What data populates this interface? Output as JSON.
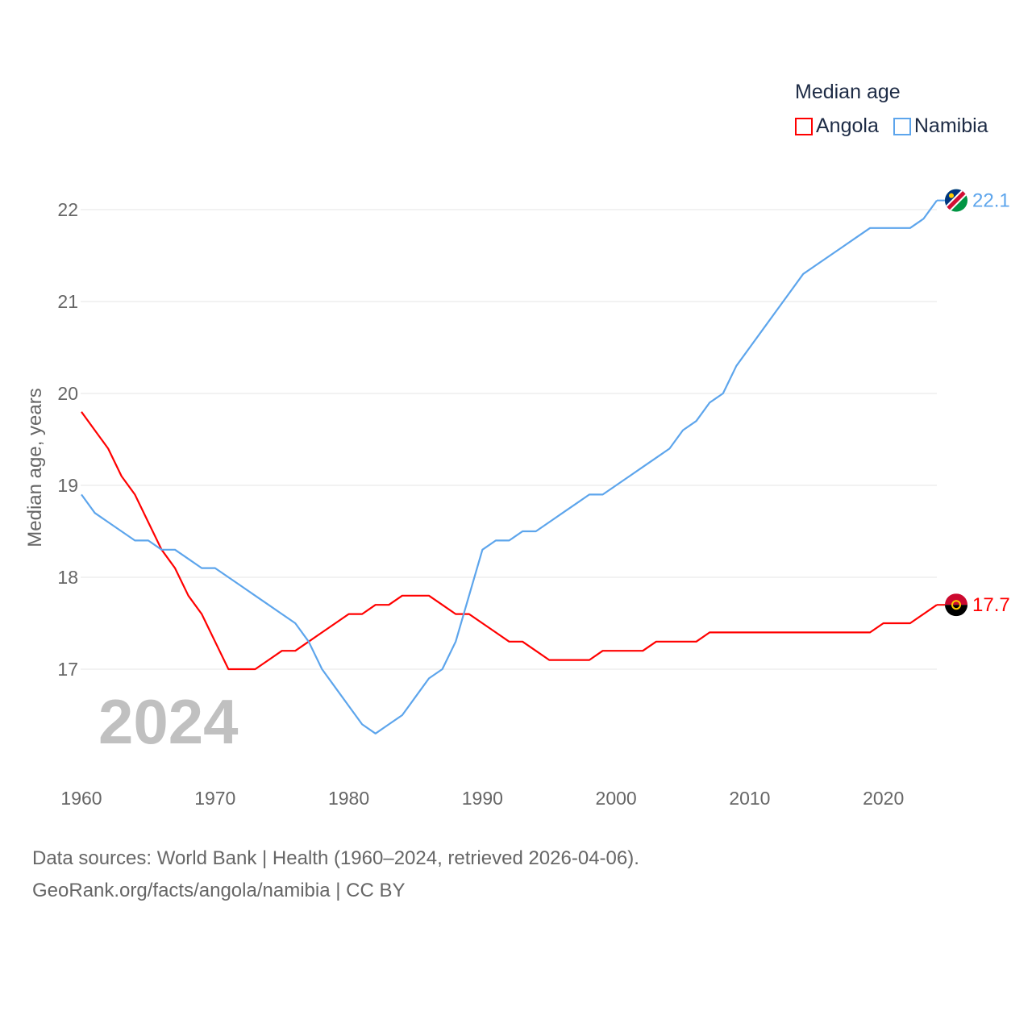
{
  "chart_data": {
    "type": "line",
    "title": "Median age",
    "ylabel": "Median age, years",
    "xlabel": "",
    "xlim": [
      1960,
      2024
    ],
    "ylim": [
      16,
      22.5
    ],
    "yticks": [
      17,
      18,
      19,
      20,
      21,
      22
    ],
    "xticks": [
      1960,
      1970,
      1980,
      1990,
      2000,
      2010,
      2020
    ],
    "grid": true,
    "legend_position": "top-right",
    "current_year_label": "2024",
    "x": [
      1960,
      1961,
      1962,
      1963,
      1964,
      1965,
      1966,
      1967,
      1968,
      1969,
      1970,
      1971,
      1972,
      1973,
      1974,
      1975,
      1976,
      1977,
      1978,
      1979,
      1980,
      1981,
      1982,
      1983,
      1984,
      1985,
      1986,
      1987,
      1988,
      1989,
      1990,
      1991,
      1992,
      1993,
      1994,
      1995,
      1996,
      1997,
      1998,
      1999,
      2000,
      2001,
      2002,
      2003,
      2004,
      2005,
      2006,
      2007,
      2008,
      2009,
      2010,
      2011,
      2012,
      2013,
      2014,
      2015,
      2016,
      2017,
      2018,
      2019,
      2020,
      2021,
      2022,
      2023,
      2024
    ],
    "series": [
      {
        "name": "Angola",
        "color": "#ff0000",
        "end_label": "17.7",
        "flag": "angola-flag",
        "values": [
          19.8,
          19.6,
          19.4,
          19.1,
          18.9,
          18.6,
          18.3,
          18.1,
          17.8,
          17.6,
          17.3,
          17.0,
          17.0,
          17.0,
          17.1,
          17.2,
          17.2,
          17.3,
          17.4,
          17.5,
          17.6,
          17.6,
          17.7,
          17.7,
          17.8,
          17.8,
          17.8,
          17.7,
          17.6,
          17.6,
          17.5,
          17.4,
          17.3,
          17.3,
          17.2,
          17.1,
          17.1,
          17.1,
          17.1,
          17.2,
          17.2,
          17.2,
          17.2,
          17.3,
          17.3,
          17.3,
          17.3,
          17.4,
          17.4,
          17.4,
          17.4,
          17.4,
          17.4,
          17.4,
          17.4,
          17.4,
          17.4,
          17.4,
          17.4,
          17.4,
          17.5,
          17.5,
          17.5,
          17.6,
          17.7
        ]
      },
      {
        "name": "Namibia",
        "color": "#5da5ec",
        "end_label": "22.1",
        "flag": "namibia-flag",
        "values": [
          18.9,
          18.7,
          18.6,
          18.5,
          18.4,
          18.4,
          18.3,
          18.3,
          18.2,
          18.1,
          18.1,
          18.0,
          17.9,
          17.8,
          17.7,
          17.6,
          17.5,
          17.3,
          17.0,
          16.8,
          16.6,
          16.4,
          16.3,
          16.4,
          16.5,
          16.7,
          16.9,
          17.0,
          17.3,
          17.8,
          18.3,
          18.4,
          18.4,
          18.5,
          18.5,
          18.6,
          18.7,
          18.8,
          18.9,
          18.9,
          19.0,
          19.1,
          19.2,
          19.3,
          19.4,
          19.6,
          19.7,
          19.9,
          20.0,
          20.3,
          20.5,
          20.7,
          20.9,
          21.1,
          21.3,
          21.4,
          21.5,
          21.6,
          21.7,
          21.8,
          21.8,
          21.8,
          21.8,
          21.9,
          22.1
        ]
      }
    ]
  },
  "source": {
    "line1": "Data sources: World Bank | Health (1960–2024, retrieved 2026-04-06).",
    "line2": "GeoRank.org/facts/angola/namibia | CC BY"
  }
}
